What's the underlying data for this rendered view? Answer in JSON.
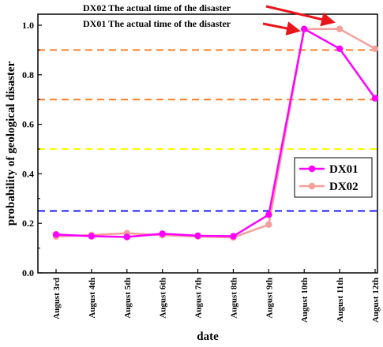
{
  "chart_data": {
    "type": "line",
    "xlabel": "date",
    "ylabel": "probability of geological disaster",
    "categories": [
      "August 3rd",
      "August 4th",
      "August 5th",
      "August 6th",
      "August 7th",
      "August 8th",
      "August 9th",
      "August 10th",
      "August 11th",
      "August 12th"
    ],
    "ylim": [
      0.0,
      1.0
    ],
    "yticks": [
      0.0,
      0.2,
      0.4,
      0.6,
      0.8,
      1.0
    ],
    "ytick_labels": [
      "0.0",
      "0.2",
      "0.4",
      "0.6",
      "0.8",
      "1.0"
    ],
    "grid": false,
    "legend_position": "center-right",
    "series": [
      {
        "name": "DX01",
        "color": "#ff00ff",
        "values": [
          0.155,
          0.148,
          0.145,
          0.158,
          0.15,
          0.148,
          0.235,
          0.985,
          0.905,
          0.705
        ]
      },
      {
        "name": "DX02",
        "color": "#f4a09a",
        "values": [
          0.147,
          0.153,
          0.16,
          0.152,
          0.147,
          0.143,
          0.195,
          0.985,
          0.985,
          0.905
        ]
      }
    ],
    "reference_lines": [
      {
        "y": 0.9,
        "color": "#ff7f27"
      },
      {
        "y": 0.7,
        "color": "#ff7f27"
      },
      {
        "y": 0.5,
        "color": "#ffff00"
      },
      {
        "y": 0.25,
        "color": "#1a1aff"
      }
    ],
    "annotations": [
      {
        "text": "DX02 The actual time of the disaster",
        "arrow_to_category": "August 11th",
        "arrow_to_value": 0.985,
        "color": "#e8151b"
      },
      {
        "text": "DX01 The actual time of the disaster",
        "arrow_to_category": "August 10th",
        "arrow_to_value": 0.985,
        "color": "#e8151b"
      }
    ]
  }
}
